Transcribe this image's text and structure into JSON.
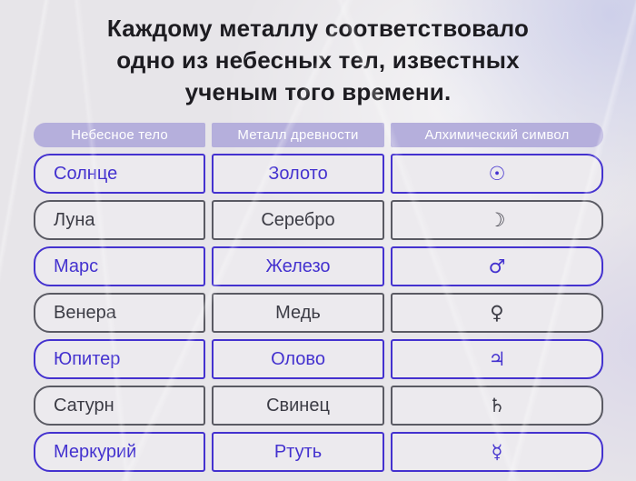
{
  "title": {
    "lines": [
      "Каждому металлу соответствовало",
      "одно из небесных тел, известных",
      "ученым того времени."
    ]
  },
  "table": {
    "headers": [
      "Небесное тело",
      "Металл древности",
      "Алхимический символ"
    ],
    "rows": [
      {
        "body": "Солнце",
        "metal": "Золото",
        "symbol": "☉"
      },
      {
        "body": "Луна",
        "metal": "Серебро",
        "symbol": "☽"
      },
      {
        "body": "Марс",
        "metal": "Железо",
        "symbol": "♂"
      },
      {
        "body": "Венера",
        "metal": "Медь",
        "symbol": "♀"
      },
      {
        "body": "Юпитер",
        "metal": "Олово",
        "symbol": "♃"
      },
      {
        "body": "Сатурн",
        "metal": "Свинец",
        "symbol": "♄"
      },
      {
        "body": "Меркурий",
        "metal": "Ртуть",
        "symbol": "☿"
      }
    ]
  },
  "colors": {
    "accent": "#4432cf",
    "muted_border": "#5a5a63",
    "muted_text": "#3c3c45",
    "header_bg": "#b5afdc",
    "header_text": "#ffffff",
    "page_bg": "#e7e5e9",
    "cell_bg": "#eceaee",
    "title_text": "#1d1c21"
  }
}
